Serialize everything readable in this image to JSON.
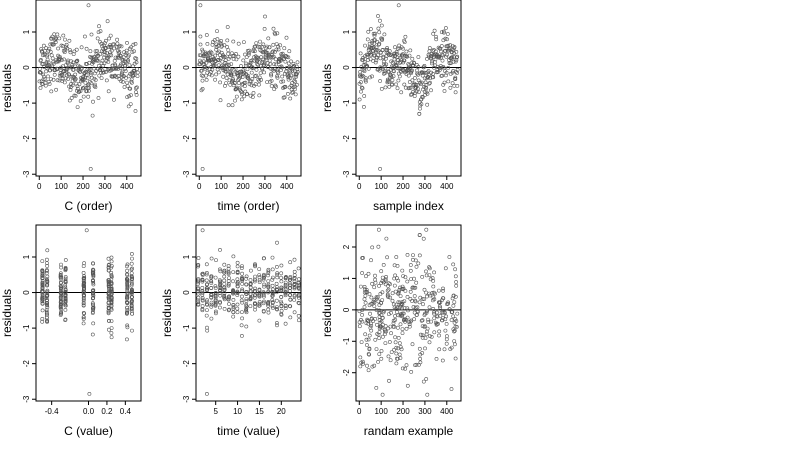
{
  "chart_data": [
    {
      "type": "scatter",
      "xlabel": "C (order)",
      "ylabel": "residuals",
      "xlim": [
        -15,
        465
      ],
      "ylim": [
        -3.05,
        1.9
      ],
      "xticks": [
        0,
        100,
        200,
        300,
        400
      ],
      "yticks": [
        -3,
        -2,
        -1,
        0,
        1
      ],
      "hline": 0,
      "pattern": "order",
      "outliers": [
        [
          225,
          1.75
        ],
        [
          235,
          -2.85
        ]
      ]
    },
    {
      "type": "scatter",
      "xlabel": "time (order)",
      "ylabel": "residuals",
      "xlim": [
        -15,
        465
      ],
      "ylim": [
        -3.05,
        1.9
      ],
      "xticks": [
        0,
        100,
        200,
        300,
        400
      ],
      "yticks": [
        -3,
        -2,
        -1,
        0,
        1
      ],
      "hline": 0,
      "pattern": "order",
      "outliers": [
        [
          5,
          1.75
        ],
        [
          15,
          -2.85
        ]
      ]
    },
    {
      "type": "scatter",
      "xlabel": "sample index",
      "ylabel": "residuals",
      "xlim": [
        -15,
        465
      ],
      "ylim": [
        -3.05,
        1.9
      ],
      "xticks": [
        0,
        100,
        200,
        300,
        400
      ],
      "yticks": [
        -3,
        -2,
        -1,
        0,
        1
      ],
      "hline": 0,
      "pattern": "index",
      "outliers": [
        [
          180,
          1.75
        ],
        [
          95,
          -2.85
        ]
      ]
    },
    {
      "type": "scatter",
      "xlabel": "C (value)",
      "ylabel": "residuals",
      "xlim": [
        -0.57,
        0.57
      ],
      "ylim": [
        -3.05,
        1.9
      ],
      "xticks": [
        -0.4,
        0.0,
        0.2,
        0.4
      ],
      "xticklabels": [
        "-0.4",
        "0.0",
        "0.2",
        "0.4"
      ],
      "yticks": [
        -3,
        -2,
        -1,
        0,
        1
      ],
      "hline": 0,
      "pattern": "groups",
      "groups": [
        -0.5,
        -0.45,
        -0.3,
        -0.25,
        -0.05,
        0.05,
        0.22,
        0.25,
        0.42,
        0.47
      ],
      "outliers": [
        [
          -0.02,
          1.75
        ],
        [
          0.01,
          -2.85
        ]
      ]
    },
    {
      "type": "scatter",
      "xlabel": "time (value)",
      "ylabel": "residuals",
      "xlim": [
        0.5,
        24.5
      ],
      "ylim": [
        -3.05,
        1.9
      ],
      "xticks": [
        5,
        10,
        15,
        20
      ],
      "yticks": [
        -3,
        -2,
        -1,
        0,
        1
      ],
      "hline": 0,
      "pattern": "groups",
      "groups": [
        1,
        2,
        3,
        4,
        5,
        6,
        7,
        8,
        9,
        10,
        11,
        12,
        13,
        14,
        15,
        16,
        17,
        18,
        19,
        20,
        21,
        22,
        23,
        24
      ],
      "outliers": [
        [
          2,
          1.75
        ],
        [
          3,
          -2.85
        ]
      ]
    },
    {
      "type": "scatter",
      "xlabel": "randam example",
      "ylabel": "residuals",
      "xlim": [
        -15,
        465
      ],
      "ylim": [
        -2.9,
        2.7
      ],
      "xticks": [
        0,
        100,
        200,
        300,
        400
      ],
      "yticks": [
        -2,
        -1,
        0,
        1,
        2
      ],
      "hline": 0,
      "pattern": "random",
      "outliers": []
    }
  ]
}
